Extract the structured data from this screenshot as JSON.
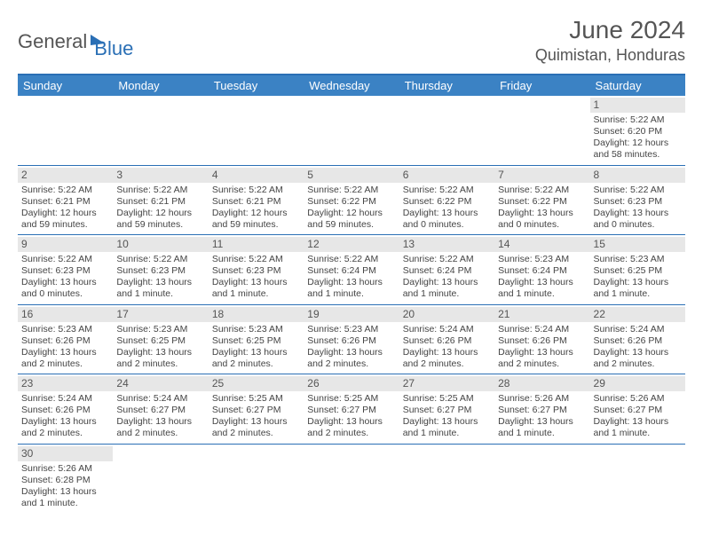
{
  "header": {
    "logo_general": "General",
    "logo_blue": "Blue",
    "title": "June 2024",
    "location": "Quimistan, Honduras"
  },
  "colors": {
    "header_bg": "#3b82c4",
    "header_border_top": "#2a6fb5",
    "row_bottom_border": "#2a6fb5",
    "daynum_bg": "#e7e7e7",
    "text": "#444444"
  },
  "days_of_week": [
    "Sunday",
    "Monday",
    "Tuesday",
    "Wednesday",
    "Thursday",
    "Friday",
    "Saturday"
  ],
  "weeks": [
    [
      {
        "day": null
      },
      {
        "day": null
      },
      {
        "day": null
      },
      {
        "day": null
      },
      {
        "day": null
      },
      {
        "day": null
      },
      {
        "day": 1,
        "sunrise": "Sunrise: 5:22 AM",
        "sunset": "Sunset: 6:20 PM",
        "daylight1": "Daylight: 12 hours",
        "daylight2": "and 58 minutes."
      }
    ],
    [
      {
        "day": 2,
        "sunrise": "Sunrise: 5:22 AM",
        "sunset": "Sunset: 6:21 PM",
        "daylight1": "Daylight: 12 hours",
        "daylight2": "and 59 minutes."
      },
      {
        "day": 3,
        "sunrise": "Sunrise: 5:22 AM",
        "sunset": "Sunset: 6:21 PM",
        "daylight1": "Daylight: 12 hours",
        "daylight2": "and 59 minutes."
      },
      {
        "day": 4,
        "sunrise": "Sunrise: 5:22 AM",
        "sunset": "Sunset: 6:21 PM",
        "daylight1": "Daylight: 12 hours",
        "daylight2": "and 59 minutes."
      },
      {
        "day": 5,
        "sunrise": "Sunrise: 5:22 AM",
        "sunset": "Sunset: 6:22 PM",
        "daylight1": "Daylight: 12 hours",
        "daylight2": "and 59 minutes."
      },
      {
        "day": 6,
        "sunrise": "Sunrise: 5:22 AM",
        "sunset": "Sunset: 6:22 PM",
        "daylight1": "Daylight: 13 hours",
        "daylight2": "and 0 minutes."
      },
      {
        "day": 7,
        "sunrise": "Sunrise: 5:22 AM",
        "sunset": "Sunset: 6:22 PM",
        "daylight1": "Daylight: 13 hours",
        "daylight2": "and 0 minutes."
      },
      {
        "day": 8,
        "sunrise": "Sunrise: 5:22 AM",
        "sunset": "Sunset: 6:23 PM",
        "daylight1": "Daylight: 13 hours",
        "daylight2": "and 0 minutes."
      }
    ],
    [
      {
        "day": 9,
        "sunrise": "Sunrise: 5:22 AM",
        "sunset": "Sunset: 6:23 PM",
        "daylight1": "Daylight: 13 hours",
        "daylight2": "and 0 minutes."
      },
      {
        "day": 10,
        "sunrise": "Sunrise: 5:22 AM",
        "sunset": "Sunset: 6:23 PM",
        "daylight1": "Daylight: 13 hours",
        "daylight2": "and 1 minute."
      },
      {
        "day": 11,
        "sunrise": "Sunrise: 5:22 AM",
        "sunset": "Sunset: 6:23 PM",
        "daylight1": "Daylight: 13 hours",
        "daylight2": "and 1 minute."
      },
      {
        "day": 12,
        "sunrise": "Sunrise: 5:22 AM",
        "sunset": "Sunset: 6:24 PM",
        "daylight1": "Daylight: 13 hours",
        "daylight2": "and 1 minute."
      },
      {
        "day": 13,
        "sunrise": "Sunrise: 5:22 AM",
        "sunset": "Sunset: 6:24 PM",
        "daylight1": "Daylight: 13 hours",
        "daylight2": "and 1 minute."
      },
      {
        "day": 14,
        "sunrise": "Sunrise: 5:23 AM",
        "sunset": "Sunset: 6:24 PM",
        "daylight1": "Daylight: 13 hours",
        "daylight2": "and 1 minute."
      },
      {
        "day": 15,
        "sunrise": "Sunrise: 5:23 AM",
        "sunset": "Sunset: 6:25 PM",
        "daylight1": "Daylight: 13 hours",
        "daylight2": "and 1 minute."
      }
    ],
    [
      {
        "day": 16,
        "sunrise": "Sunrise: 5:23 AM",
        "sunset": "Sunset: 6:26 PM",
        "daylight1": "Daylight: 13 hours",
        "daylight2": "and 2 minutes."
      },
      {
        "day": 17,
        "sunrise": "Sunrise: 5:23 AM",
        "sunset": "Sunset: 6:25 PM",
        "daylight1": "Daylight: 13 hours",
        "daylight2": "and 2 minutes."
      },
      {
        "day": 18,
        "sunrise": "Sunrise: 5:23 AM",
        "sunset": "Sunset: 6:25 PM",
        "daylight1": "Daylight: 13 hours",
        "daylight2": "and 2 minutes."
      },
      {
        "day": 19,
        "sunrise": "Sunrise: 5:23 AM",
        "sunset": "Sunset: 6:26 PM",
        "daylight1": "Daylight: 13 hours",
        "daylight2": "and 2 minutes."
      },
      {
        "day": 20,
        "sunrise": "Sunrise: 5:24 AM",
        "sunset": "Sunset: 6:26 PM",
        "daylight1": "Daylight: 13 hours",
        "daylight2": "and 2 minutes."
      },
      {
        "day": 21,
        "sunrise": "Sunrise: 5:24 AM",
        "sunset": "Sunset: 6:26 PM",
        "daylight1": "Daylight: 13 hours",
        "daylight2": "and 2 minutes."
      },
      {
        "day": 22,
        "sunrise": "Sunrise: 5:24 AM",
        "sunset": "Sunset: 6:26 PM",
        "daylight1": "Daylight: 13 hours",
        "daylight2": "and 2 minutes."
      }
    ],
    [
      {
        "day": 23,
        "sunrise": "Sunrise: 5:24 AM",
        "sunset": "Sunset: 6:26 PM",
        "daylight1": "Daylight: 13 hours",
        "daylight2": "and 2 minutes."
      },
      {
        "day": 24,
        "sunrise": "Sunrise: 5:24 AM",
        "sunset": "Sunset: 6:27 PM",
        "daylight1": "Daylight: 13 hours",
        "daylight2": "and 2 minutes."
      },
      {
        "day": 25,
        "sunrise": "Sunrise: 5:25 AM",
        "sunset": "Sunset: 6:27 PM",
        "daylight1": "Daylight: 13 hours",
        "daylight2": "and 2 minutes."
      },
      {
        "day": 26,
        "sunrise": "Sunrise: 5:25 AM",
        "sunset": "Sunset: 6:27 PM",
        "daylight1": "Daylight: 13 hours",
        "daylight2": "and 2 minutes."
      },
      {
        "day": 27,
        "sunrise": "Sunrise: 5:25 AM",
        "sunset": "Sunset: 6:27 PM",
        "daylight1": "Daylight: 13 hours",
        "daylight2": "and 1 minute."
      },
      {
        "day": 28,
        "sunrise": "Sunrise: 5:26 AM",
        "sunset": "Sunset: 6:27 PM",
        "daylight1": "Daylight: 13 hours",
        "daylight2": "and 1 minute."
      },
      {
        "day": 29,
        "sunrise": "Sunrise: 5:26 AM",
        "sunset": "Sunset: 6:27 PM",
        "daylight1": "Daylight: 13 hours",
        "daylight2": "and 1 minute."
      }
    ],
    [
      {
        "day": 30,
        "sunrise": "Sunrise: 5:26 AM",
        "sunset": "Sunset: 6:28 PM",
        "daylight1": "Daylight: 13 hours",
        "daylight2": "and 1 minute."
      },
      {
        "day": null
      },
      {
        "day": null
      },
      {
        "day": null
      },
      {
        "day": null
      },
      {
        "day": null
      },
      {
        "day": null
      }
    ]
  ]
}
